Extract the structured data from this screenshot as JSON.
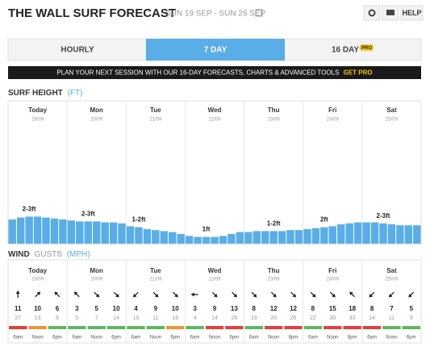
{
  "header": {
    "title": "THE WALL SURF FORECAST",
    "dates": "SUN 19 SEP - SUN 26 SEP",
    "help": "HELP"
  },
  "tabs": [
    "HOURLY",
    "7 DAY",
    "16 DAY"
  ],
  "pro_badge": "PRO",
  "banner": {
    "text": "PLAN YOUR NEXT SESSION WITH OUR 16-DAY FORECASTS, CHARTS & ADVANCED TOOLS",
    "cta": "GET PRO"
  },
  "surf": {
    "title": "SURF HEIGHT",
    "unit": "(FT)",
    "color": "#5aaee8",
    "days": [
      {
        "name": "Today",
        "date": "19/09",
        "label": "2-3ft",
        "bars": [
          2.5,
          2.7,
          2.8,
          2.8,
          2.7,
          2.6,
          2.5
        ]
      },
      {
        "name": "Mon",
        "date": "20/09",
        "label": "2-3ft",
        "bars": [
          2.4,
          2.3,
          2.3,
          2.3,
          2.2,
          2.2,
          2.1
        ]
      },
      {
        "name": "Tue",
        "date": "21/09",
        "label": "1-2ft",
        "bars": [
          1.8,
          1.7,
          1.5,
          1.4,
          1.3,
          1.2,
          1.0
        ]
      },
      {
        "name": "Wed",
        "date": "22/09",
        "label": "1ft",
        "bars": [
          0.8,
          0.7,
          0.7,
          0.7,
          0.8,
          1.0,
          1.2
        ]
      },
      {
        "name": "Thu",
        "date": "23/09",
        "label": "1-2ft",
        "bars": [
          1.2,
          1.3,
          1.3,
          1.3,
          1.3,
          1.4,
          1.4
        ]
      },
      {
        "name": "Fri",
        "date": "24/09",
        "label": "2ft",
        "bars": [
          1.5,
          1.6,
          1.7,
          1.8,
          2.0,
          2.1,
          2.2
        ]
      },
      {
        "name": "Sat",
        "date": "25/09",
        "label": "2-3ft",
        "bars": [
          2.2,
          2.2,
          2.1,
          2.0,
          1.9,
          1.9,
          1.9
        ]
      }
    ]
  },
  "wind": {
    "title": "WIND",
    "gusts": "GUSTS",
    "unit": "(MPH)",
    "times": [
      "6am",
      "Noon",
      "6pm"
    ],
    "days": [
      {
        "name": "Today",
        "date": "19/09",
        "slots": [
          {
            "speed": 11,
            "gust": 27,
            "dir": 180,
            "rating": "#e0413a"
          },
          {
            "speed": 10,
            "gust": 13,
            "dir": 225,
            "rating": "#f0962e"
          },
          {
            "speed": 6,
            "gust": 9,
            "dir": 135,
            "rating": "#5cb85c"
          }
        ]
      },
      {
        "name": "Mon",
        "date": "20/09",
        "slots": [
          {
            "speed": 3,
            "gust": 5,
            "dir": 135,
            "rating": "#5cb85c"
          },
          {
            "speed": 5,
            "gust": 7,
            "dir": 315,
            "rating": "#5cb85c"
          },
          {
            "speed": 10,
            "gust": 14,
            "dir": 315,
            "rating": "#5cb85c"
          }
        ]
      },
      {
        "name": "Tue",
        "date": "21/09",
        "slots": [
          {
            "speed": 4,
            "gust": 10,
            "dir": 45,
            "rating": "#5cb85c"
          },
          {
            "speed": 9,
            "gust": 11,
            "dir": 315,
            "rating": "#5cb85c"
          },
          {
            "speed": 10,
            "gust": 16,
            "dir": 315,
            "rating": "#f0962e"
          }
        ]
      },
      {
        "name": "Wed",
        "date": "22/09",
        "slots": [
          {
            "speed": 3,
            "gust": 4,
            "dir": 90,
            "rating": "#5cb85c"
          },
          {
            "speed": 9,
            "gust": 14,
            "dir": 315,
            "rating": "#e0413a"
          },
          {
            "speed": 13,
            "gust": 26,
            "dir": 315,
            "rating": "#e0413a"
          }
        ]
      },
      {
        "name": "Thu",
        "date": "23/09",
        "slots": [
          {
            "speed": 8,
            "gust": 19,
            "dir": 315,
            "rating": "#5cb85c"
          },
          {
            "speed": 12,
            "gust": 20,
            "dir": 315,
            "rating": "#e0413a"
          },
          {
            "speed": 12,
            "gust": 26,
            "dir": 315,
            "rating": "#e0413a"
          }
        ]
      },
      {
        "name": "Fri",
        "date": "24/09",
        "slots": [
          {
            "speed": 8,
            "gust": 22,
            "dir": 315,
            "rating": "#5cb85c"
          },
          {
            "speed": 15,
            "gust": 30,
            "dir": 315,
            "rating": "#e0413a"
          },
          {
            "speed": 18,
            "gust": 33,
            "dir": 135,
            "rating": "#e0413a"
          }
        ]
      },
      {
        "name": "Sat",
        "date": "25/09",
        "slots": [
          {
            "speed": 8,
            "gust": 14,
            "dir": 45,
            "rating": "#e0413a"
          },
          {
            "speed": 7,
            "gust": 11,
            "dir": 45,
            "rating": "#5cb85c"
          },
          {
            "speed": 5,
            "gust": 9,
            "dir": 45,
            "rating": "#5cb85c"
          }
        ]
      }
    ]
  }
}
